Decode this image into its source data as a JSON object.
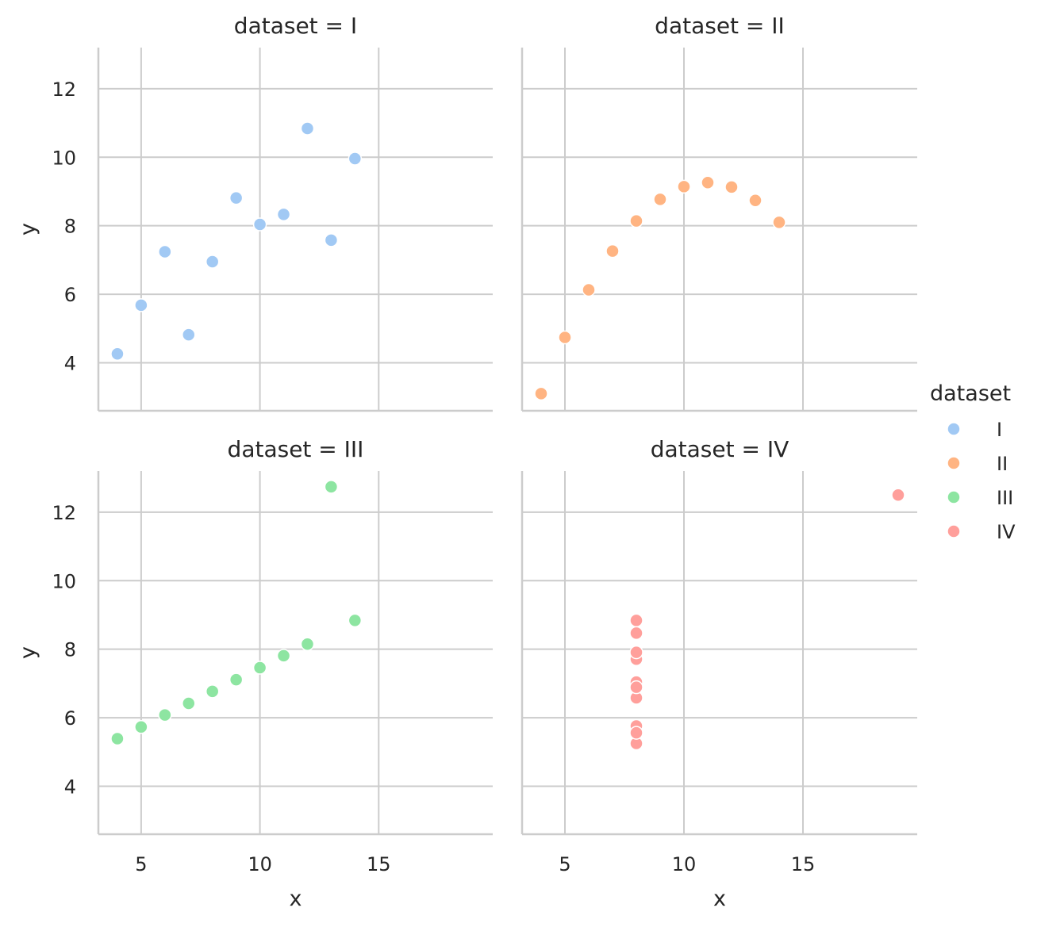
{
  "chart_data": {
    "type": "scatter",
    "facet_variable": "dataset",
    "xlabel": "x",
    "ylabel": "y",
    "xlim": [
      3.2,
      19.8
    ],
    "ylim": [
      2.6,
      13.2
    ],
    "x_ticks": [
      5,
      10,
      15
    ],
    "y_ticks": [
      4,
      6,
      8,
      10,
      12
    ],
    "grid": true,
    "legend": {
      "title": "dataset",
      "placement": "right",
      "entries": [
        {
          "label": "I",
          "color": "#a1c9f4"
        },
        {
          "label": "II",
          "color": "#ffb482"
        },
        {
          "label": "III",
          "color": "#8de5a1"
        },
        {
          "label": "IV",
          "color": "#ff9f9b"
        }
      ]
    },
    "panels": [
      {
        "title": "dataset = I",
        "series": "I",
        "color": "#a1c9f4",
        "x": [
          10,
          8,
          13,
          9,
          11,
          14,
          6,
          4,
          12,
          7,
          5
        ],
        "y": [
          8.04,
          6.95,
          7.58,
          8.81,
          8.33,
          9.96,
          7.24,
          4.26,
          10.84,
          4.82,
          5.68
        ]
      },
      {
        "title": "dataset = II",
        "series": "II",
        "color": "#ffb482",
        "x": [
          10,
          8,
          13,
          9,
          11,
          14,
          6,
          4,
          12,
          7,
          5
        ],
        "y": [
          9.14,
          8.14,
          8.74,
          8.77,
          9.26,
          8.1,
          6.13,
          3.1,
          9.13,
          7.26,
          4.74
        ]
      },
      {
        "title": "dataset = III",
        "series": "III",
        "color": "#8de5a1",
        "x": [
          10,
          8,
          13,
          9,
          11,
          14,
          6,
          4,
          12,
          7,
          5
        ],
        "y": [
          7.46,
          6.77,
          12.74,
          7.11,
          7.81,
          8.84,
          6.08,
          5.39,
          8.15,
          6.42,
          5.73
        ]
      },
      {
        "title": "dataset = IV",
        "series": "IV",
        "color": "#ff9f9b",
        "x": [
          8,
          8,
          8,
          8,
          8,
          8,
          8,
          19,
          8,
          8,
          8
        ],
        "y": [
          6.58,
          5.76,
          7.71,
          8.84,
          8.47,
          7.04,
          5.25,
          12.5,
          5.56,
          7.91,
          6.89
        ]
      }
    ]
  }
}
